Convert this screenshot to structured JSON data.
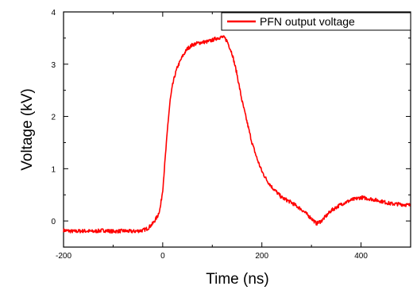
{
  "chart_data": {
    "type": "line",
    "xlabel": "Time (ns)",
    "ylabel": "Voltage (kV)",
    "xlim": [
      -200,
      500
    ],
    "ylim": [
      -0.5,
      4
    ],
    "x_ticks": [
      "-200",
      "0",
      "200",
      "400"
    ],
    "y_ticks": [
      "0",
      "1",
      "2",
      "3",
      "4"
    ],
    "grid": false,
    "legend_position": "top-right",
    "series": [
      {
        "name": "PFN output voltage",
        "color": "#ff0000",
        "x": [
          -200,
          -180,
          -160,
          -140,
          -120,
          -100,
          -80,
          -60,
          -40,
          -30,
          -20,
          -10,
          -5,
          0,
          5,
          10,
          15,
          20,
          25,
          30,
          40,
          50,
          60,
          70,
          80,
          90,
          100,
          110,
          120,
          125,
          130,
          140,
          150,
          160,
          170,
          180,
          190,
          200,
          210,
          220,
          230,
          240,
          260,
          280,
          300,
          310,
          320,
          330,
          340,
          360,
          380,
          400,
          420,
          440,
          460,
          480,
          500
        ],
        "y": [
          -0.18,
          -0.2,
          -0.19,
          -0.2,
          -0.18,
          -0.2,
          -0.19,
          -0.2,
          -0.18,
          -0.14,
          -0.05,
          0.1,
          0.25,
          0.6,
          1.2,
          1.8,
          2.3,
          2.6,
          2.8,
          2.95,
          3.15,
          3.3,
          3.37,
          3.4,
          3.42,
          3.43,
          3.46,
          3.5,
          3.52,
          3.5,
          3.44,
          3.2,
          2.8,
          2.3,
          1.9,
          1.5,
          1.2,
          0.95,
          0.78,
          0.65,
          0.55,
          0.45,
          0.35,
          0.22,
          0.05,
          -0.05,
          0.0,
          0.1,
          0.2,
          0.32,
          0.4,
          0.45,
          0.42,
          0.38,
          0.33,
          0.32,
          0.3
        ]
      }
    ]
  }
}
